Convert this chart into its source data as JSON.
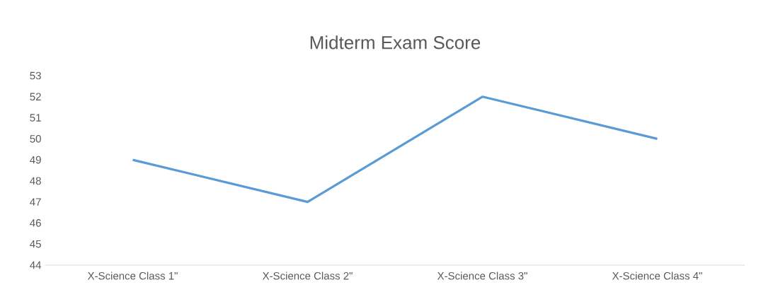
{
  "chart_data": {
    "type": "line",
    "title": "Midterm Exam Score",
    "categories": [
      "X-Science Class 1\"",
      "X-Science Class 2\"",
      "X-Science Class 3\"",
      "X-Science Class 4\""
    ],
    "values": [
      49,
      47,
      52,
      50
    ],
    "color": "#5b9bd5",
    "ylim": [
      44,
      53
    ],
    "yticks": [
      44,
      45,
      46,
      47,
      48,
      49,
      50,
      51,
      52,
      53
    ]
  }
}
